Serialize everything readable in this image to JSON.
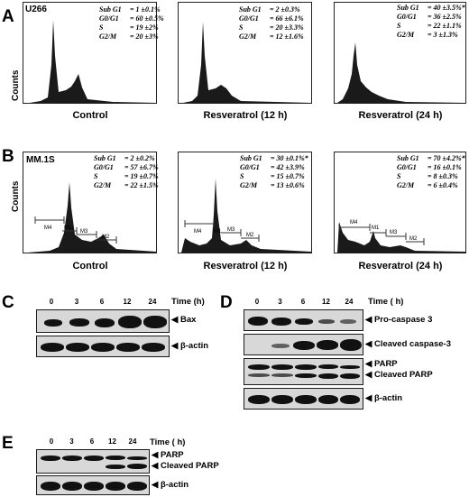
{
  "panel_letters": {
    "A": "A",
    "B": "B",
    "C": "C",
    "D": "D",
    "E": "E"
  },
  "flow": {
    "y_axis_label": "Counts",
    "panel_A": {
      "cell_line": "U266",
      "plots": [
        {
          "caption": "Control",
          "stats": [
            [
              "Sub G1",
              "= 1 ±0.1%"
            ],
            [
              "G0/G1",
              "= 60 ±0.5%"
            ],
            [
              "S",
              "= 19 ±2%"
            ],
            [
              "G2/M",
              "= 20 ±3%"
            ]
          ]
        },
        {
          "caption": "Resveratrol (12 h)",
          "stats": [
            [
              "Sub G1",
              "= 2 ±0.3%"
            ],
            [
              "G0/G1",
              "= 66 ±6.1%"
            ],
            [
              "S",
              "= 20 ±3.3%"
            ],
            [
              "G2/M",
              "= 12 ±1.6%"
            ]
          ]
        },
        {
          "caption": "Resveratrol (24 h)",
          "stats": [
            [
              "Sub G1",
              "= 40 ±3.5%*"
            ],
            [
              "G0/G1",
              "= 36 ±2.5%"
            ],
            [
              "S",
              "= 22 ±1.1%"
            ],
            [
              "G2/M",
              "= 3 ±1.3%"
            ]
          ]
        }
      ]
    },
    "panel_B": {
      "cell_line": "MM.1S",
      "plots": [
        {
          "caption": "Control",
          "stats": [],
          "gates": [
            "M4",
            "M1",
            "M3",
            "M2"
          ]
        },
        {
          "caption": "Resveratrol (12 h)",
          "stats": [
            [
              "Sub G1",
              "= 30 ±0.1%*"
            ],
            [
              "G0/G1",
              "= 42 ±3.9%"
            ],
            [
              "S",
              "= 15 ±0.7%"
            ],
            [
              "G2/M",
              "= 13 ±0.6%"
            ]
          ],
          "gates": [
            "M4",
            "M1",
            "M3",
            "M2"
          ]
        },
        {
          "caption": "Resveratrol (24 h)",
          "stats": [
            [
              "Sub G1",
              "= 70 ±4.2%*"
            ],
            [
              "G0/G1",
              "= 16 ±0.1%"
            ],
            [
              "S",
              "= 8 ±0.3%"
            ],
            [
              "G2/M",
              "= 6 ±0.4%"
            ]
          ],
          "gates": [
            "M4",
            "M1",
            "M3",
            "M2"
          ]
        }
      ],
      "control_stats": [
        [
          "Sub G1",
          "= 2 ±0.2%"
        ],
        [
          "G0/G1",
          "= 57 ±6.7%"
        ],
        [
          "S",
          "= 19 ±0.7%"
        ],
        [
          "G2/M",
          "= 22 ±1.5%"
        ]
      ]
    }
  },
  "blots": {
    "panel_C": {
      "time_label": "Time (h)",
      "timepoints": [
        "0",
        "3",
        "6",
        "12",
        "24"
      ],
      "rows": [
        "Bax",
        "β-actin"
      ]
    },
    "panel_D": {
      "time_label": "Time ( h)",
      "timepoints": [
        "0",
        "3",
        "6",
        "12",
        "24"
      ],
      "rows": [
        "Pro-caspase 3",
        "Cleaved caspase-3",
        "PARP",
        "Cleaved PARP",
        "β-actin"
      ]
    },
    "panel_E": {
      "time_label": "Time ( h)",
      "timepoints": [
        "0",
        "3",
        "6",
        "12",
        "24"
      ],
      "rows": [
        "PARP",
        "Cleaved PARP",
        "β-actin"
      ]
    }
  }
}
